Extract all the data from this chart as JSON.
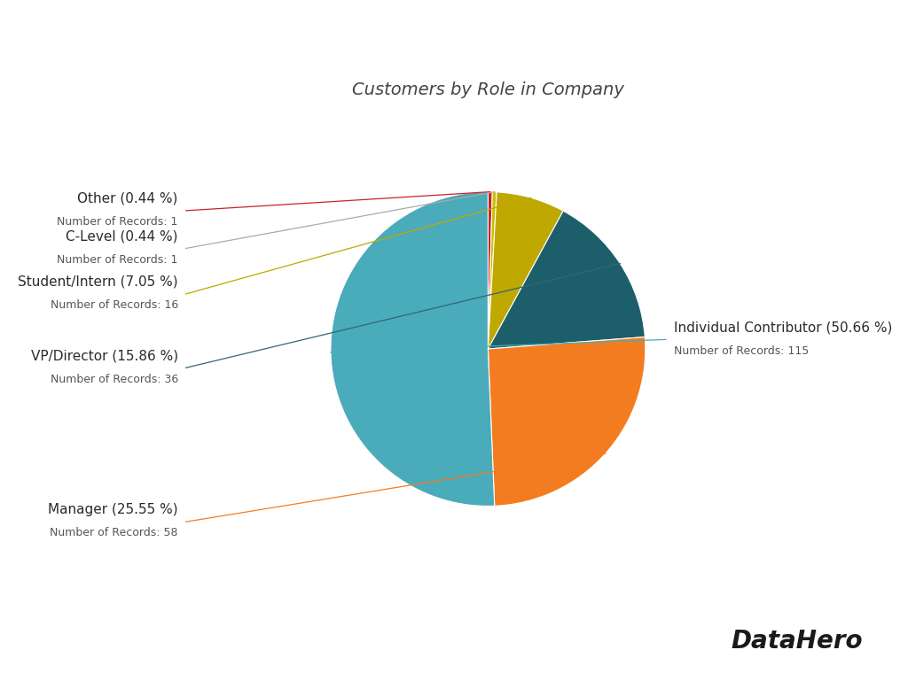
{
  "title": "Customers by Role in Company",
  "slices": [
    {
      "label": "Individual Contributor",
      "pct": 50.66,
      "records": 115,
      "color": "#4AABBA"
    },
    {
      "label": "Manager",
      "pct": 25.55,
      "records": 58,
      "color": "#F47C20"
    },
    {
      "label": "VP/Director",
      "pct": 15.86,
      "records": 36,
      "color": "#1C5F6B"
    },
    {
      "label": "Student/Intern",
      "pct": 7.05,
      "records": 16,
      "color": "#BFA800"
    },
    {
      "label": "C-Level",
      "pct": 0.44,
      "records": 1,
      "color": "#C8C000"
    },
    {
      "label": "Other",
      "pct": 0.44,
      "records": 1,
      "color": "#CC2222"
    }
  ],
  "line_colors": {
    "Individual Contributor": "#4AABBA",
    "Manager": "#F47C20",
    "VP/Director": "#336677",
    "Student/Intern": "#BFA800",
    "C-Level": "#AAAAAA",
    "Other": "#CC2222"
  },
  "background_color": "#FFFFFF",
  "title_fontsize": 14,
  "label_fontsize": 11,
  "sublabel_fontsize": 9,
  "datahero_text": "DataHero"
}
